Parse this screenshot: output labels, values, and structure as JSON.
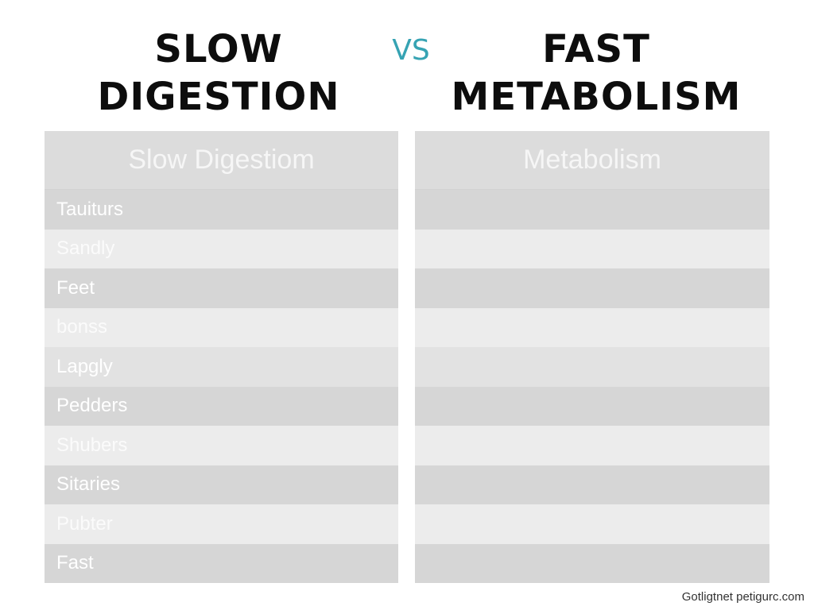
{
  "header": {
    "left_title": [
      "SLOW",
      "DIGESTION"
    ],
    "vs": "VS",
    "right_title": [
      "FAST",
      "METABOLISM"
    ]
  },
  "left_table": {
    "header": "Slow Digestiom",
    "rows": [
      "Tauiturs",
      "Sandly",
      "Feet",
      "bonss",
      "Lapgly",
      "Pedders",
      "Shubers",
      "Sitaries",
      "Pubter",
      "Fast"
    ]
  },
  "right_table": {
    "header": "Metabolism",
    "rows": [
      "",
      "",
      "",
      "",
      "",
      "",
      "",
      "",
      "",
      ""
    ]
  },
  "watermark": "Gotligtnet petigurc.com",
  "colors": {
    "title": "#0d0d0d",
    "vs": "#36a3b3",
    "table_dark": "#d6d6d6",
    "table_light": "#ececec"
  }
}
